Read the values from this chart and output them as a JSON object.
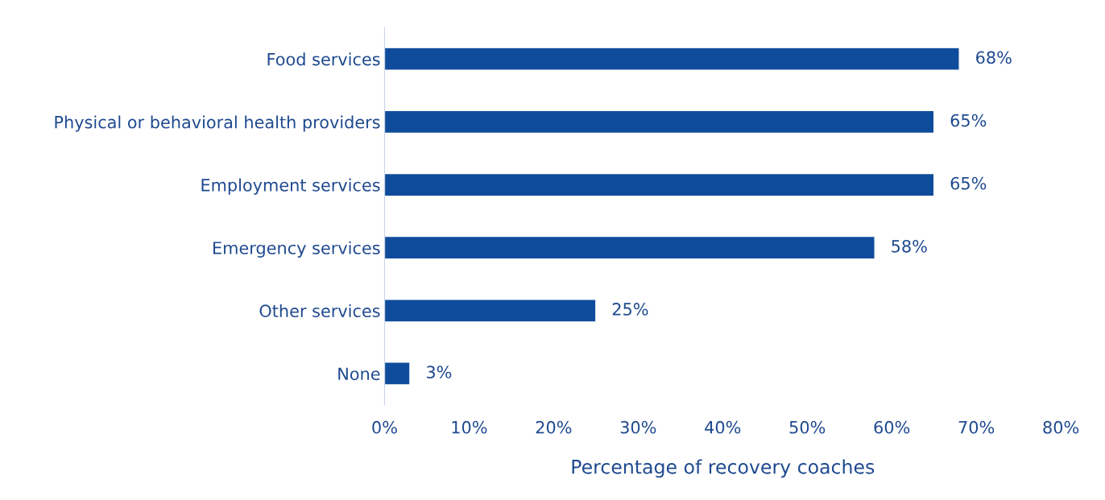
{
  "chart_data": {
    "type": "bar",
    "orientation": "horizontal",
    "xlabel": "Percentage of recovery coaches",
    "categories": [
      "Food services",
      "Physical or behavioral health providers",
      "Employment services",
      "Emergency services",
      "Other services",
      "None"
    ],
    "values": [
      68,
      65,
      65,
      58,
      25,
      3
    ],
    "value_labels": [
      "68%",
      "65%",
      "65%",
      "58%",
      "25%",
      "3%"
    ],
    "color": "#104c9c",
    "xlim": [
      0,
      80
    ],
    "xticks": [
      {
        "value": 0,
        "label": "0%"
      },
      {
        "value": 10,
        "label": "10%"
      },
      {
        "value": 20,
        "label": "20%"
      },
      {
        "value": 30,
        "label": "30%"
      },
      {
        "value": 40,
        "label": "40%"
      },
      {
        "value": 50,
        "label": "50%"
      },
      {
        "value": 60,
        "label": "60%"
      },
      {
        "value": 70,
        "label": "70%"
      },
      {
        "value": 80,
        "label": "80%"
      }
    ],
    "grid": false,
    "legend": false
  }
}
